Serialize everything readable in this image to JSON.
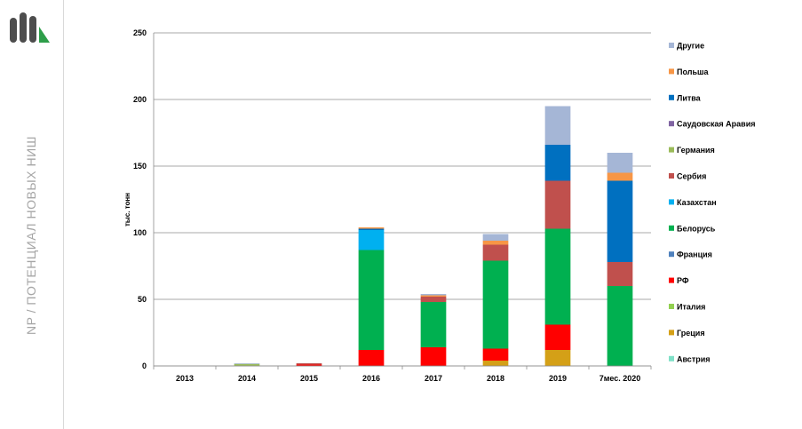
{
  "sidebar": {
    "caption": "NP / ПОТЕНЦИАЛ НОВЫХ НИШ",
    "logo_icon": "bar-chart-logo-icon",
    "logo_colors": [
      "#4d4d4d",
      "#4d4d4d",
      "#4d4d4d",
      "#2e9e4a"
    ]
  },
  "chart_data": {
    "type": "bar",
    "stacked": true,
    "categories": [
      "2013",
      "2014",
      "2015",
      "2016",
      "2017",
      "2018",
      "2019",
      "7мес. 2020"
    ],
    "ylabel": "тыс. тонн",
    "xlabel": "",
    "ylim": [
      0,
      250
    ],
    "yticks": [
      0,
      50,
      100,
      150,
      200,
      250
    ],
    "grid": true,
    "legend_position": "right",
    "series": [
      {
        "name": "Австрия",
        "color": "#7fe0c7",
        "values": [
          0,
          0,
          0,
          0,
          0,
          0,
          0,
          0
        ]
      },
      {
        "name": "Греция",
        "color": "#d4a017",
        "values": [
          0,
          0,
          0,
          0,
          0,
          4,
          12,
          0
        ]
      },
      {
        "name": "Италия",
        "color": "#92d050",
        "values": [
          0,
          0,
          0,
          0,
          0,
          0,
          0,
          0
        ]
      },
      {
        "name": "РФ",
        "color": "#ff0000",
        "values": [
          0,
          0,
          1,
          12,
          14,
          9,
          19,
          0
        ]
      },
      {
        "name": "Франция",
        "color": "#4f81bd",
        "values": [
          0,
          0,
          0,
          0,
          0,
          0,
          0,
          0
        ]
      },
      {
        "name": "Белорусь",
        "color": "#00b050",
        "values": [
          0,
          0,
          0,
          75,
          34,
          66,
          72,
          60
        ]
      },
      {
        "name": "Казахстан",
        "color": "#00b0f0",
        "values": [
          0,
          0,
          0,
          15,
          0,
          0,
          0,
          0
        ]
      },
      {
        "name": "Сербия",
        "color": "#c0504d",
        "values": [
          0,
          0,
          1,
          0,
          4,
          12,
          36,
          18
        ]
      },
      {
        "name": "Германия",
        "color": "#9bbb59",
        "values": [
          0,
          1.5,
          0,
          0,
          0,
          0,
          0,
          0
        ]
      },
      {
        "name": "Саудовская Аравия",
        "color": "#8064a2",
        "values": [
          0,
          0,
          0,
          0,
          0,
          0,
          0,
          0
        ]
      },
      {
        "name": "Литва",
        "color": "#0070c0",
        "values": [
          0,
          0,
          0,
          1,
          0,
          0,
          27,
          61
        ]
      },
      {
        "name": "Польша",
        "color": "#f79646",
        "values": [
          0,
          0,
          0,
          1,
          1,
          3,
          0,
          6
        ]
      },
      {
        "name": "Другие",
        "color": "#a5b6d6",
        "values": [
          0,
          0.5,
          0,
          0,
          1,
          5,
          29,
          15
        ]
      }
    ]
  }
}
